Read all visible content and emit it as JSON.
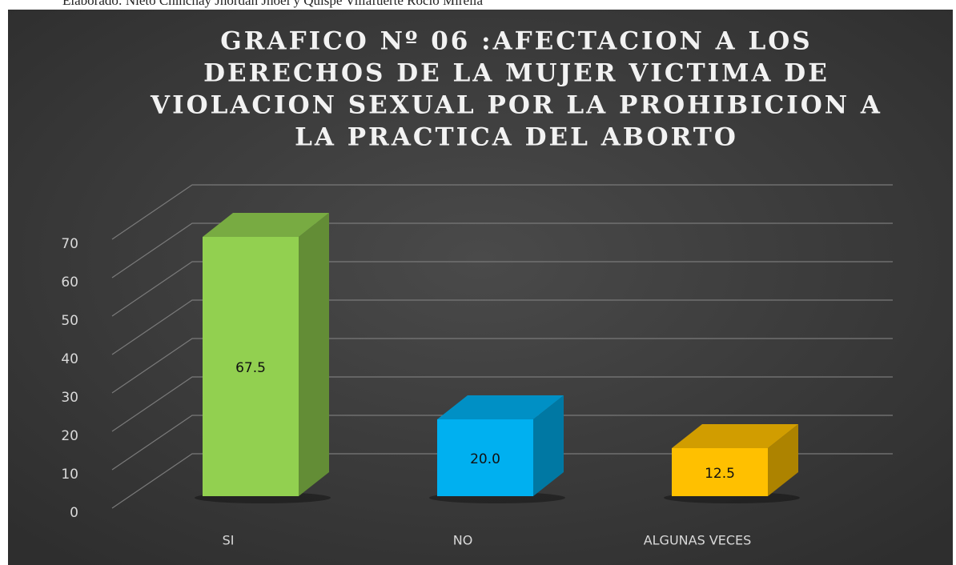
{
  "note": "Elaborado: Nieto Chinchay Jhordan Jhoel y Quispe Villafuerte Rocio Mirella",
  "chart_data": {
    "type": "bar3d",
    "title": [
      "GRAFICO Nº 06 :AFECTACION A LOS",
      "DERECHOS DE LA MUJER VICTIMA DE",
      "VIOLACION SEXUAL POR LA PROHIBICION A",
      "LA PRACTICA DEL ABORTO"
    ],
    "categories": [
      "SI",
      "NO",
      "ALGUNAS VECES"
    ],
    "values": [
      67.5,
      20.0,
      12.5
    ],
    "value_labels": [
      "67.5",
      "20.0",
      "12.5"
    ],
    "colors": [
      "#92d050",
      "#00b0f0",
      "#ffc000"
    ],
    "ylim": [
      0,
      70
    ],
    "yticks": [
      0,
      10,
      20,
      30,
      40,
      50,
      60,
      70
    ],
    "grid": true
  }
}
